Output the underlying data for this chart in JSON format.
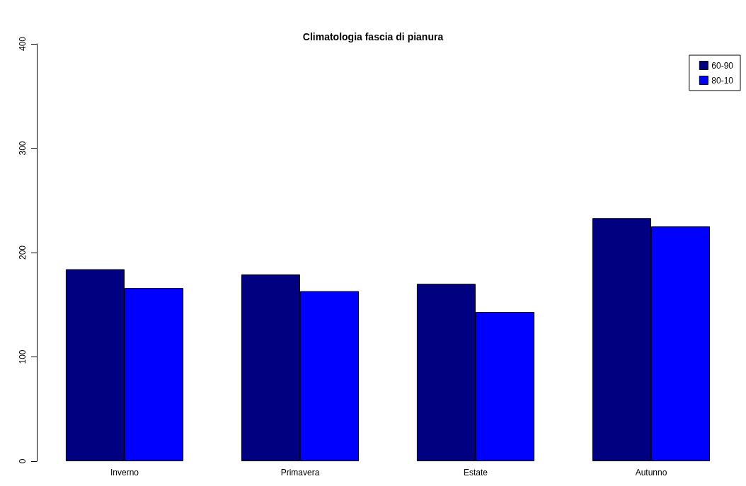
{
  "chart_data": {
    "type": "bar",
    "title": "Climatologia fascia di pianura",
    "categories": [
      "Inverno",
      "Primavera",
      "Estate",
      "Autunno"
    ],
    "series": [
      {
        "name": "60-90",
        "color": "#000080",
        "values": [
          184,
          179,
          170,
          233
        ]
      },
      {
        "name": "80-10",
        "color": "#0000ff",
        "values": [
          166,
          163,
          143,
          225
        ]
      }
    ],
    "ylim": [
      0,
      400
    ],
    "yticks": [
      0,
      100,
      200,
      300,
      400
    ],
    "grid": false,
    "legend": "top right"
  }
}
